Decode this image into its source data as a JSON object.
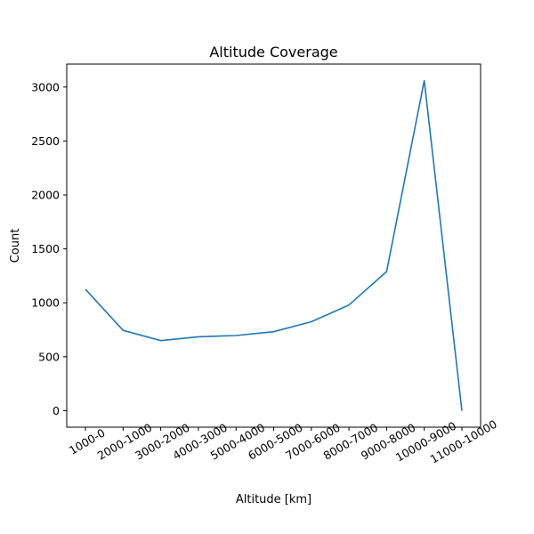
{
  "chart_data": {
    "type": "line",
    "title": "Altitude Coverage",
    "xlabel": "Altitude [km]",
    "ylabel": "Count",
    "categories": [
      "1000-0",
      "2000-1000",
      "3000-2000",
      "4000-3000",
      "5000-4000",
      "6000-5000",
      "7000-6000",
      "8000-7000",
      "9000-8000",
      "10000-9000",
      "11000-10000"
    ],
    "series": [
      {
        "values": [
          1125,
          745,
          650,
          685,
          697,
          732,
          825,
          980,
          1290,
          3060,
          0
        ],
        "color": "#1f77b4"
      }
    ],
    "yticks": [
      0,
      500,
      1000,
      1500,
      2000,
      2500,
      3000
    ],
    "ylim": [
      -153,
      3213
    ],
    "grid": false,
    "legend": "none"
  }
}
